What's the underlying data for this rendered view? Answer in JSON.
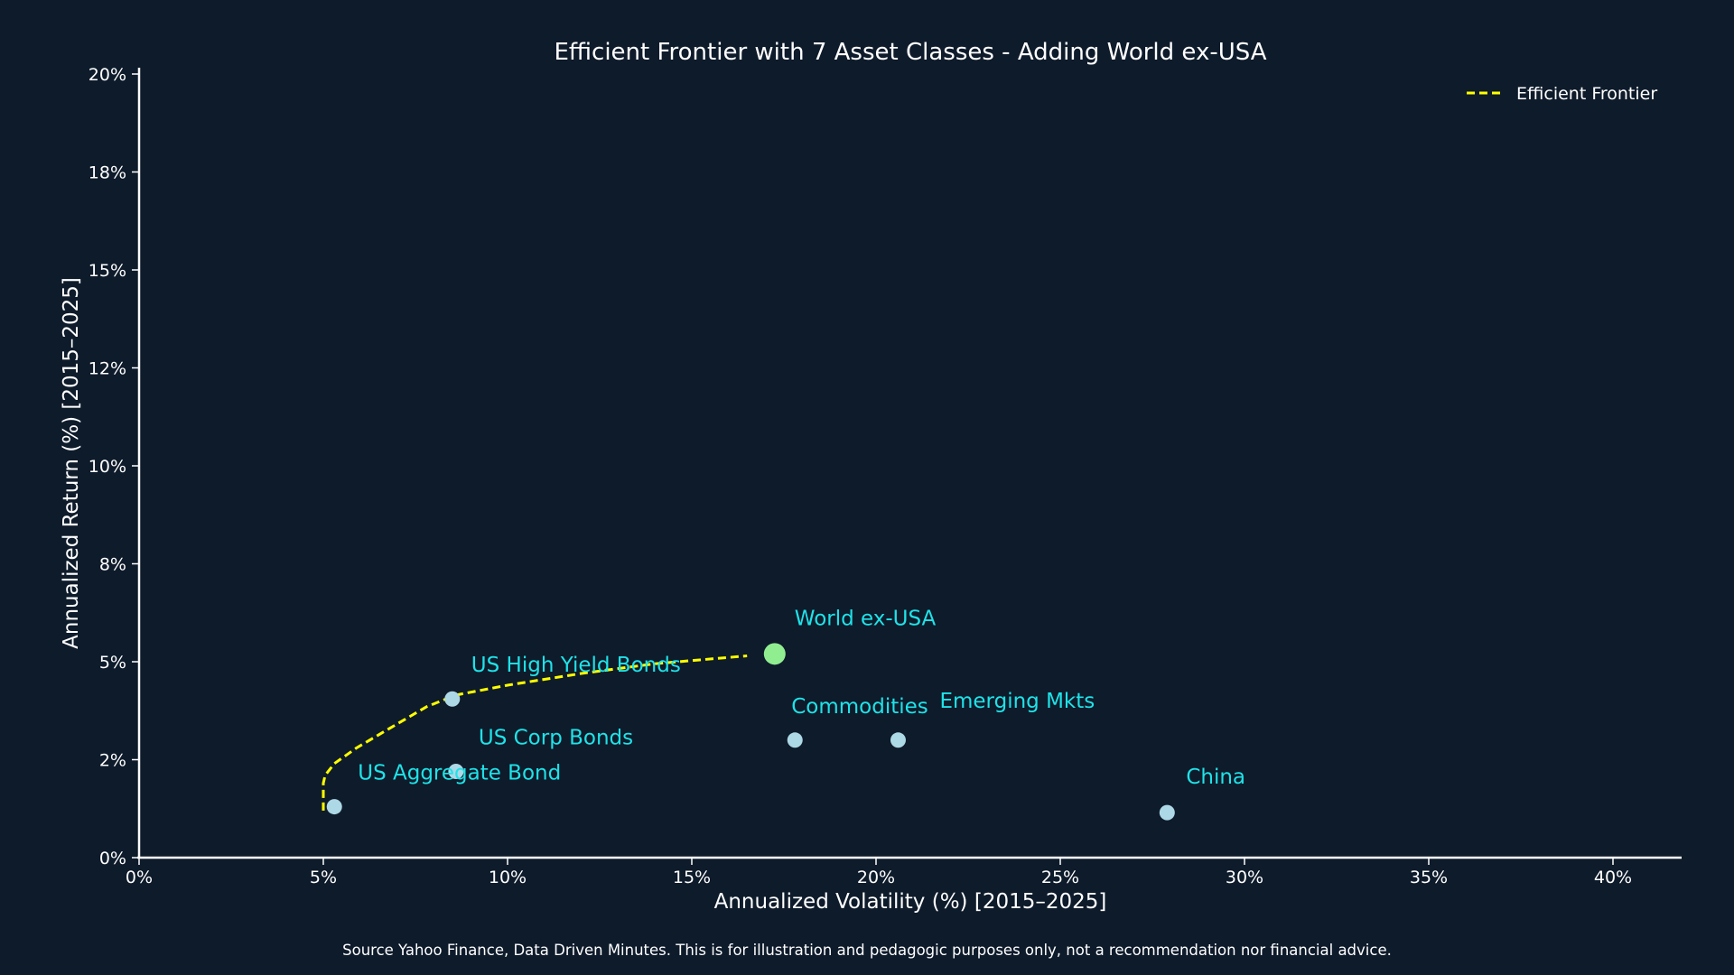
{
  "chart_data": {
    "type": "scatter",
    "title": "Efficient Frontier with 7 Asset Classes - Adding World ex-USA",
    "xlabel": "Annualized Volatility (%) [2015–2025]",
    "ylabel": "Annualized Return (%) [2015–2025]",
    "xlim": [
      0,
      42
    ],
    "ylim": [
      0,
      20.2
    ],
    "x_ticks": [
      0,
      5,
      10,
      15,
      20,
      25,
      30,
      35,
      40
    ],
    "x_tick_labels": [
      "0%",
      "5%",
      "10%",
      "15%",
      "20%",
      "25%",
      "30%",
      "35%",
      "40%"
    ],
    "y_ticks": [
      0,
      2.5,
      5,
      7.5,
      10,
      12.5,
      15,
      17.5,
      20
    ],
    "y_tick_labels": [
      "0%",
      "2%",
      "5%",
      "8%",
      "10%",
      "12%",
      "15%",
      "18%",
      "20%"
    ],
    "grid": false,
    "legend_position": "top-right",
    "assets": [
      {
        "name": "US Aggregate Bond",
        "x": 5.3,
        "y": 1.3,
        "highlight": false
      },
      {
        "name": "US Corp Bonds",
        "x": 8.6,
        "y": 2.2,
        "highlight": false
      },
      {
        "name": "US High Yield Bonds",
        "x": 8.5,
        "y": 4.05,
        "highlight": false
      },
      {
        "name": "Commodities",
        "x": 17.8,
        "y": 3.0,
        "highlight": false
      },
      {
        "name": "Emerging Mkts",
        "x": 20.6,
        "y": 3.0,
        "highlight": false
      },
      {
        "name": "China",
        "x": 27.9,
        "y": 1.15,
        "highlight": false
      },
      {
        "name": "World ex-USA",
        "x": 17.25,
        "y": 5.2,
        "highlight": true
      }
    ],
    "series": [
      {
        "name": "Efficient Frontier",
        "style": "dashed",
        "color": "#ffff00",
        "x": [
          5.0,
          5.0,
          5.05,
          5.3,
          5.9,
          6.8,
          7.8,
          8.6,
          10.0,
          12.0,
          14.0,
          16.5
        ],
        "y": [
          1.2,
          1.9,
          2.1,
          2.4,
          2.8,
          3.3,
          3.85,
          4.15,
          4.4,
          4.7,
          4.95,
          5.15
        ]
      }
    ],
    "colors": {
      "background": "#0e1b2b",
      "point": "#add8e6",
      "highlight_point": "#90ee90",
      "label": "#1ee3e8",
      "frontier": "#ffff00"
    }
  },
  "source_note": "Source Yahoo Finance, Data Driven Minutes. This is for illustration and pedagogic purposes only, not a recommendation nor financial advice."
}
